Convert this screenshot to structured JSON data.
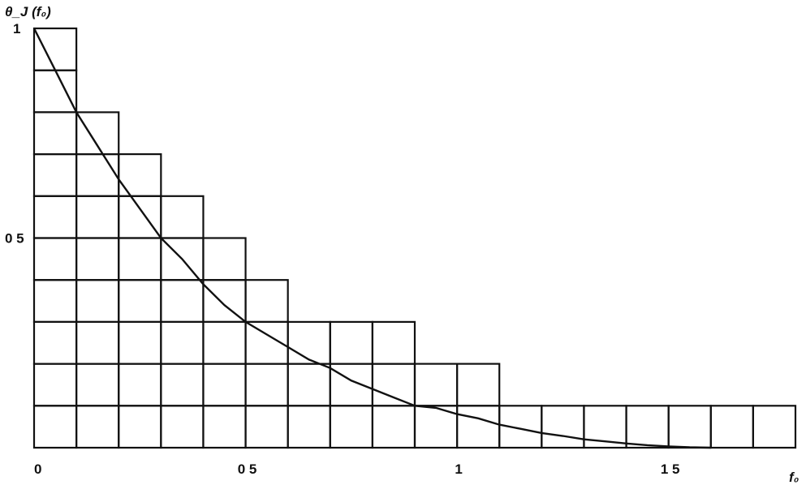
{
  "chart_data": {
    "type": "bar",
    "title": "",
    "ylabel": "θ_J (f₀)",
    "xlabel": "f₀",
    "xlim": [
      0,
      1.8
    ],
    "ylim": [
      0,
      1
    ],
    "x_ticks": [
      {
        "value": 0,
        "label": "0"
      },
      {
        "value": 0.5,
        "label": "0 5"
      },
      {
        "value": 1,
        "label": "1"
      },
      {
        "value": 1.5,
        "label": "1 5"
      }
    ],
    "y_ticks": [
      {
        "value": 0.5,
        "label": "0 5"
      },
      {
        "value": 1,
        "label": "1"
      }
    ],
    "bin_width": 0.1,
    "cell_height": 0.1,
    "bars": [
      {
        "x_start": 0.0,
        "x_end": 0.1,
        "value": 1.0
      },
      {
        "x_start": 0.1,
        "x_end": 0.2,
        "value": 0.8
      },
      {
        "x_start": 0.2,
        "x_end": 0.3,
        "value": 0.7
      },
      {
        "x_start": 0.3,
        "x_end": 0.4,
        "value": 0.6
      },
      {
        "x_start": 0.4,
        "x_end": 0.5,
        "value": 0.5
      },
      {
        "x_start": 0.5,
        "x_end": 0.6,
        "value": 0.4
      },
      {
        "x_start": 0.6,
        "x_end": 0.7,
        "value": 0.3
      },
      {
        "x_start": 0.7,
        "x_end": 0.8,
        "value": 0.3
      },
      {
        "x_start": 0.8,
        "x_end": 0.9,
        "value": 0.3
      },
      {
        "x_start": 0.9,
        "x_end": 1.0,
        "value": 0.2
      },
      {
        "x_start": 1.0,
        "x_end": 1.1,
        "value": 0.2
      },
      {
        "x_start": 1.1,
        "x_end": 1.2,
        "value": 0.1
      },
      {
        "x_start": 1.2,
        "x_end": 1.3,
        "value": 0.1
      },
      {
        "x_start": 1.3,
        "x_end": 1.4,
        "value": 0.1
      },
      {
        "x_start": 1.4,
        "x_end": 1.5,
        "value": 0.1
      },
      {
        "x_start": 1.5,
        "x_end": 1.6,
        "value": 0.1
      },
      {
        "x_start": 1.6,
        "x_end": 1.7,
        "value": 0.1
      },
      {
        "x_start": 1.7,
        "x_end": 1.8,
        "value": 0.1
      }
    ],
    "curve": {
      "x": [
        0,
        0.05,
        0.1,
        0.15,
        0.2,
        0.25,
        0.3,
        0.35,
        0.4,
        0.45,
        0.5,
        0.55,
        0.6,
        0.65,
        0.7,
        0.75,
        0.8,
        0.85,
        0.9,
        0.95,
        1.0,
        1.05,
        1.1,
        1.15,
        1.2,
        1.25,
        1.3,
        1.35,
        1.4,
        1.45,
        1.5,
        1.55,
        1.6
      ],
      "y": [
        1.0,
        0.9,
        0.8,
        0.72,
        0.64,
        0.57,
        0.5,
        0.45,
        0.39,
        0.34,
        0.3,
        0.27,
        0.24,
        0.21,
        0.19,
        0.16,
        0.14,
        0.12,
        0.1,
        0.095,
        0.08,
        0.07,
        0.055,
        0.045,
        0.035,
        0.028,
        0.02,
        0.015,
        0.01,
        0.006,
        0.003,
        0.001,
        0.0
      ]
    },
    "grid": false,
    "legend": "none"
  }
}
